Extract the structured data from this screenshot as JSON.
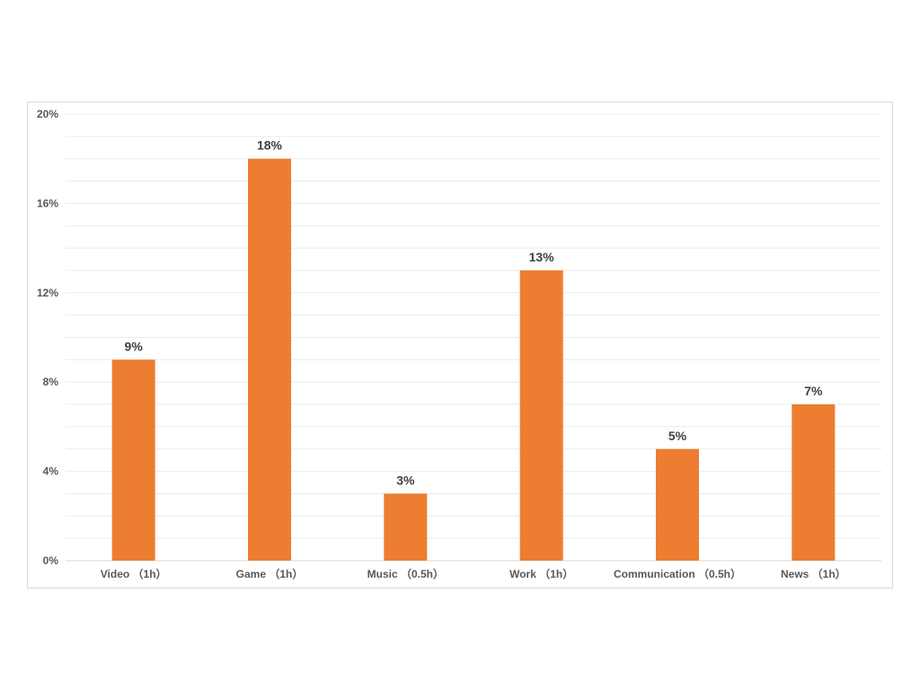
{
  "chart_data": {
    "type": "bar",
    "categories": [
      "Video （1h）",
      "Game （1h）",
      "Music （0.5h）",
      "Work （1h）",
      "Communication （0.5h）",
      "News （1h）"
    ],
    "series": [
      {
        "values": [
          9,
          18,
          3,
          13,
          5,
          7
        ],
        "data_labels": [
          "9%",
          "18%",
          "3%",
          "13%",
          "5%",
          "7%"
        ]
      }
    ],
    "y_ticks": [
      0,
      4,
      8,
      12,
      16,
      20
    ],
    "y_tick_labels": [
      "0%",
      "4%",
      "8%",
      "12%",
      "16%",
      "20%"
    ],
    "ylim": [
      0,
      20
    ],
    "grid": true,
    "legend": "none",
    "colors": {
      "bar": "#ED7D31",
      "gridline": "#EBEBEB",
      "axis": "#D9D9D9"
    }
  }
}
